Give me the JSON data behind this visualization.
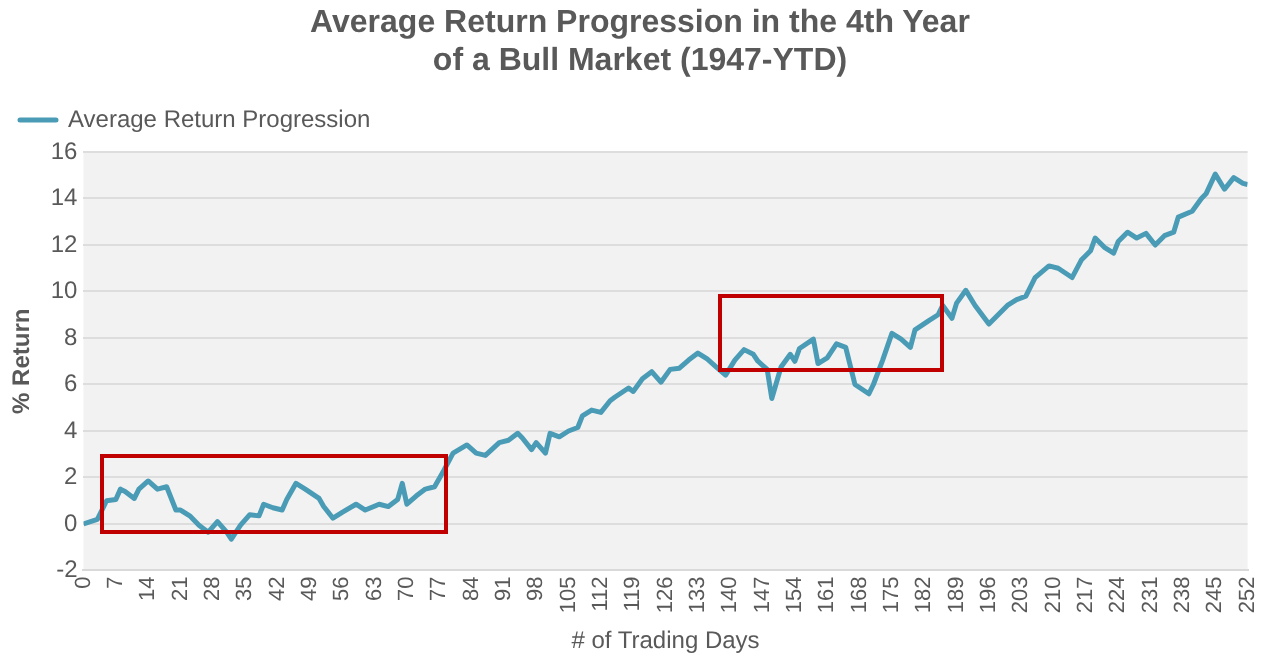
{
  "chart_data": {
    "type": "line",
    "title": "Average Return Progression in the 4th Year of a Bull Market (1947-YTD)",
    "xlabel": "# of Trading Days",
    "ylabel": "% Return",
    "xlim": [
      0,
      252
    ],
    "xticks": [
      0,
      7,
      14,
      21,
      28,
      35,
      42,
      49,
      56,
      63,
      70,
      77,
      84,
      91,
      98,
      105,
      112,
      119,
      126,
      133,
      140,
      147,
      154,
      161,
      168,
      175,
      182,
      189,
      196,
      203,
      210,
      217,
      224,
      231,
      238,
      245,
      252
    ],
    "ylim": [
      -2,
      16
    ],
    "yticks": [
      -2,
      0,
      2,
      4,
      6,
      8,
      10,
      12,
      14,
      16
    ],
    "grid": "y",
    "legend": "top left",
    "marker": "none",
    "line_style": "solid",
    "series": [
      {
        "name": "Average Return Progression",
        "color": "#4a9bb5",
        "x": [
          0,
          3,
          5,
          7,
          8,
          9,
          11,
          12,
          14,
          16,
          18,
          20,
          21,
          23,
          25,
          27,
          29,
          31,
          32,
          34,
          36,
          38,
          39,
          41,
          43,
          44,
          46,
          48,
          51,
          52,
          54,
          56,
          59,
          61,
          64,
          66,
          68,
          69,
          70,
          72,
          74,
          76,
          78,
          80,
          83,
          85,
          87,
          90,
          92,
          94,
          95,
          97,
          98,
          100,
          101,
          103,
          105,
          107,
          108,
          110,
          112,
          114,
          115,
          118,
          119,
          121,
          123,
          125,
          127,
          129,
          131,
          133,
          135,
          137,
          139,
          141,
          143,
          145,
          146,
          148,
          149,
          151,
          153,
          154,
          155,
          158,
          159,
          161,
          163,
          165,
          166,
          167,
          170,
          171,
          173,
          175,
          177,
          179,
          180,
          183,
          185,
          186,
          188,
          189,
          191,
          193,
          196,
          198,
          200,
          202,
          204,
          206,
          209,
          211,
          214,
          216,
          218,
          219,
          221,
          223,
          224,
          226,
          228,
          230,
          232,
          234,
          236,
          237,
          240,
          242,
          243,
          245,
          247,
          249,
          251,
          252
        ],
        "values": [
          0,
          0.2,
          1.0,
          1.05,
          1.5,
          1.4,
          1.1,
          1.5,
          1.85,
          1.5,
          1.6,
          0.6,
          0.6,
          0.35,
          -0.05,
          -0.35,
          0.1,
          -0.35,
          -0.65,
          -0.05,
          0.4,
          0.35,
          0.85,
          0.7,
          0.6,
          1.05,
          1.75,
          1.5,
          1.1,
          0.75,
          0.25,
          0.5,
          0.85,
          0.6,
          0.85,
          0.75,
          1.05,
          1.75,
          0.85,
          1.2,
          1.5,
          1.6,
          2.3,
          3.05,
          3.4,
          3.05,
          2.95,
          3.5,
          3.6,
          3.9,
          3.7,
          3.2,
          3.5,
          3.05,
          3.9,
          3.75,
          4.0,
          4.15,
          4.65,
          4.9,
          4.8,
          5.3,
          5.45,
          5.85,
          5.7,
          6.25,
          6.55,
          6.1,
          6.65,
          6.7,
          7.05,
          7.35,
          7.1,
          6.75,
          6.4,
          7.05,
          7.5,
          7.3,
          7.0,
          6.65,
          5.4,
          6.75,
          7.3,
          7.0,
          7.55,
          7.95,
          6.9,
          7.15,
          7.75,
          7.6,
          6.8,
          6.0,
          5.6,
          6.0,
          7.05,
          8.2,
          7.95,
          7.6,
          8.35,
          8.75,
          9.0,
          9.4,
          8.85,
          9.5,
          10.05,
          9.4,
          8.6,
          9.0,
          9.4,
          9.65,
          9.8,
          10.6,
          11.1,
          11.0,
          10.6,
          11.35,
          11.75,
          12.3,
          11.9,
          11.65,
          12.15,
          12.55,
          12.3,
          12.5,
          12.0,
          12.4,
          12.55,
          13.2,
          13.45,
          14.0,
          14.2,
          15.05,
          14.4,
          14.9,
          14.65,
          14.6
        ]
      }
    ]
  }
}
